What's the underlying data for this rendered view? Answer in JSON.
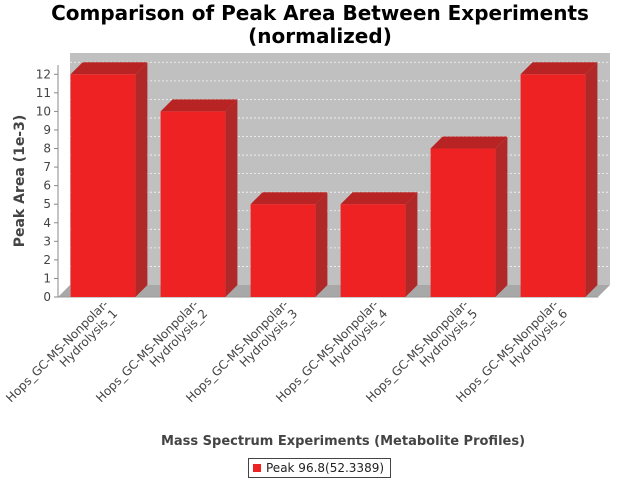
{
  "chart_data": {
    "type": "bar",
    "title": [
      "Comparison of Peak Area Between Experiments",
      "(normalized)"
    ],
    "xlabel": "Mass Spectrum Experiments (Metabolite Profiles)",
    "ylabel": "Peak Area (1e-3)",
    "categories": [
      [
        "Hops_GC-MS-Nonpolar-",
        "Hydrolysis_1"
      ],
      [
        "Hops_GC-MS-Nonpolar-",
        "Hydrolysis_2"
      ],
      [
        "Hops_GC-MS-Nonpolar-",
        "Hydrolysis_3"
      ],
      [
        "Hops_GC-MS-Nonpolar-",
        "Hydrolysis_4"
      ],
      [
        "Hops_GC-MS-Nonpolar-",
        "Hydrolysis_5"
      ],
      [
        "Hops_GC-MS-Nonpolar-",
        "Hydrolysis_6"
      ]
    ],
    "series": [
      {
        "name": "Peak 96.8(52.3389)",
        "values": [
          12,
          10,
          5,
          5,
          8,
          12
        ],
        "color": "#ee2222"
      }
    ],
    "ylim": [
      0,
      12.5
    ],
    "yticks": [
      0,
      1,
      2,
      3,
      4,
      5,
      6,
      7,
      8,
      9,
      10,
      11,
      12
    ],
    "grid": true,
    "legend": "bottom-center",
    "style": "3d-bar"
  },
  "colors": {
    "plot_background": "#c0c0c0",
    "plot_floor": "#a8a8a8",
    "bar_front": "#ee2222",
    "bar_top": "#b82424",
    "bar_side": "#b02828"
  }
}
